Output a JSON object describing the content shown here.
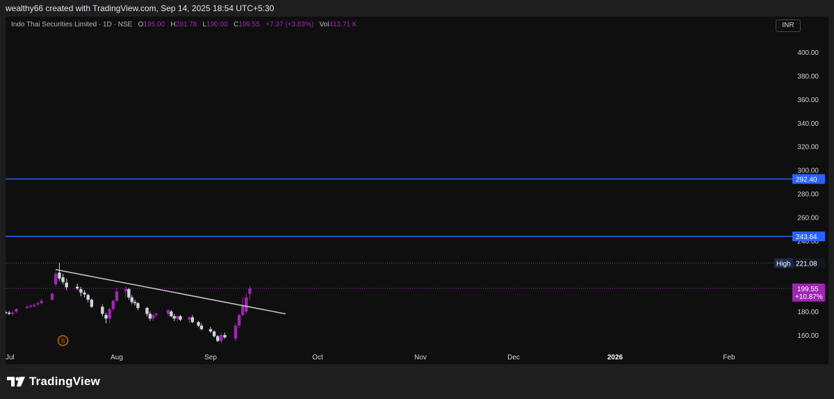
{
  "header": {
    "attribution": "wealthy66 created with TradingView.com, Sep 14, 2025 18:54 UTC+5:30"
  },
  "legend": {
    "symbol": "Indo Thai Securities Limited · 1D · NSE",
    "open_label": "O",
    "open": "195.00",
    "high_label": "H",
    "high": "201.78",
    "low_label": "L",
    "low": "190.00",
    "close_label": "C",
    "close": "199.55",
    "change": "+7.37 (+3.83%)",
    "vol_label": "Vol",
    "vol": "413.71 K"
  },
  "currency": "INR",
  "price_axis": {
    "ticks": [
      "400.00",
      "380.00",
      "360.00",
      "340.00",
      "320.00",
      "300.00",
      "280.00",
      "260.00",
      "240.00",
      "220.00",
      "200.00",
      "180.00",
      "160.00"
    ]
  },
  "time_axis": {
    "labels": [
      "Jul",
      "Aug",
      "Sep",
      "Oct",
      "Nov",
      "Dec",
      "2026",
      "Feb"
    ]
  },
  "levels": {
    "resistance_1": "292.40",
    "resistance_2": "243.64",
    "high_label": "High",
    "high_value": "221.08",
    "last_price": "199.55",
    "last_change": "+10.87%"
  },
  "colors": {
    "bull": "#9c27b0",
    "bear": "#d1d4dc",
    "level_line": "#2962ff",
    "trendline": "#c8c8c8"
  },
  "event_marker": "S",
  "candles": [
    {
      "date": "Jul 01",
      "o": 179.5,
      "h": 181.0,
      "l": 177.5,
      "c": 178.5
    },
    {
      "date": "Jul 02",
      "o": 179.0,
      "h": 180.5,
      "l": 177.0,
      "c": 178.0
    },
    {
      "date": "Jul 03",
      "o": 178.0,
      "h": 180.0,
      "l": 176.5,
      "c": 179.0
    },
    {
      "date": "Jul 04",
      "o": 180.0,
      "h": 183.0,
      "l": 179.0,
      "c": 182.0
    },
    {
      "date": "Jul 07",
      "o": 183.0,
      "h": 185.5,
      "l": 182.0,
      "c": 184.0
    },
    {
      "date": "Jul 08",
      "o": 184.0,
      "h": 186.0,
      "l": 183.0,
      "c": 185.0
    },
    {
      "date": "Jul 09",
      "o": 184.5,
      "h": 187.0,
      "l": 183.5,
      "c": 185.5
    },
    {
      "date": "Jul 10",
      "o": 186.0,
      "h": 188.5,
      "l": 185.0,
      "c": 187.0
    },
    {
      "date": "Jul 11",
      "o": 187.0,
      "h": 190.5,
      "l": 186.0,
      "c": 189.0
    },
    {
      "date": "Jul 14",
      "o": 190.0,
      "h": 196.0,
      "l": 189.0,
      "c": 195.0
    },
    {
      "date": "Jul 15",
      "o": 203.0,
      "h": 214.0,
      "l": 201.0,
      "c": 212.0
    },
    {
      "date": "Jul 16",
      "o": 213.0,
      "h": 221.08,
      "l": 206.0,
      "c": 208.0
    },
    {
      "date": "Jul 17",
      "o": 209.0,
      "h": 212.0,
      "l": 203.0,
      "c": 205.0
    },
    {
      "date": "Jul 18",
      "o": 204.5,
      "h": 208.0,
      "l": 198.0,
      "c": 200.5
    },
    {
      "date": "Jul 21",
      "o": 201.0,
      "h": 203.5,
      "l": 198.0,
      "c": 199.5
    },
    {
      "date": "Jul 22",
      "o": 199.0,
      "h": 201.0,
      "l": 193.0,
      "c": 196.0
    },
    {
      "date": "Jul 23",
      "o": 196.0,
      "h": 198.0,
      "l": 192.0,
      "c": 194.5
    },
    {
      "date": "Jul 24",
      "o": 194.0,
      "h": 195.0,
      "l": 188.0,
      "c": 190.0
    },
    {
      "date": "Jul 25",
      "o": 190.0,
      "h": 191.0,
      "l": 183.0,
      "c": 184.0
    },
    {
      "date": "Jul 28",
      "o": 184.0,
      "h": 186.0,
      "l": 176.0,
      "c": 178.0
    },
    {
      "date": "Jul 29",
      "o": 177.0,
      "h": 179.0,
      "l": 170.0,
      "c": 174.0
    },
    {
      "date": "Jul 30",
      "o": 174.0,
      "h": 183.0,
      "l": 170.0,
      "c": 182.0
    },
    {
      "date": "Jul 31",
      "o": 182.0,
      "h": 190.0,
      "l": 180.0,
      "c": 189.0
    },
    {
      "date": "Aug 01",
      "o": 189.0,
      "h": 200.0,
      "l": 188.0,
      "c": 197.0
    },
    {
      "date": "Aug 04",
      "o": 197.0,
      "h": 201.0,
      "l": 192.0,
      "c": 199.0
    },
    {
      "date": "Aug 05",
      "o": 199.0,
      "h": 200.0,
      "l": 190.0,
      "c": 192.0
    },
    {
      "date": "Aug 06",
      "o": 192.0,
      "h": 194.0,
      "l": 186.0,
      "c": 188.0
    },
    {
      "date": "Aug 07",
      "o": 188.0,
      "h": 190.0,
      "l": 185.0,
      "c": 187.0
    },
    {
      "date": "Aug 08",
      "o": 187.0,
      "h": 188.0,
      "l": 181.0,
      "c": 183.0
    },
    {
      "date": "Aug 11",
      "o": 183.0,
      "h": 184.0,
      "l": 176.0,
      "c": 178.0
    },
    {
      "date": "Aug 12",
      "o": 178.0,
      "h": 180.0,
      "l": 172.0,
      "c": 174.0
    },
    {
      "date": "Aug 13",
      "o": 174.0,
      "h": 178.0,
      "l": 172.0,
      "c": 177.0
    },
    {
      "date": "Aug 14",
      "o": 177.0,
      "h": 179.0,
      "l": 175.0,
      "c": 178.0
    },
    {
      "date": "Aug 18",
      "o": 178.0,
      "h": 182.0,
      "l": 176.0,
      "c": 181.0
    },
    {
      "date": "Aug 19",
      "o": 180.0,
      "h": 181.0,
      "l": 175.0,
      "c": 176.0
    },
    {
      "date": "Aug 20",
      "o": 176.0,
      "h": 178.0,
      "l": 172.0,
      "c": 174.0
    },
    {
      "date": "Aug 21",
      "o": 174.0,
      "h": 177.0,
      "l": 172.0,
      "c": 176.0
    },
    {
      "date": "Aug 22",
      "o": 176.0,
      "h": 177.0,
      "l": 172.0,
      "c": 173.0
    },
    {
      "date": "Aug 25",
      "o": 173.0,
      "h": 176.0,
      "l": 170.0,
      "c": 175.0
    },
    {
      "date": "Aug 26",
      "o": 175.0,
      "h": 177.0,
      "l": 170.0,
      "c": 171.0
    },
    {
      "date": "Aug 28",
      "o": 171.0,
      "h": 172.0,
      "l": 167.0,
      "c": 168.0
    },
    {
      "date": "Aug 29",
      "o": 168.0,
      "h": 170.0,
      "l": 164.0,
      "c": 165.0
    },
    {
      "date": "Sep 01",
      "o": 165.0,
      "h": 167.0,
      "l": 162.0,
      "c": 163.0
    },
    {
      "date": "Sep 02",
      "o": 163.0,
      "h": 164.0,
      "l": 158.0,
      "c": 159.0
    },
    {
      "date": "Sep 03",
      "o": 159.0,
      "h": 160.0,
      "l": 154.0,
      "c": 155.0
    },
    {
      "date": "Sep 04",
      "o": 155.0,
      "h": 162.0,
      "l": 153.0,
      "c": 160.0
    },
    {
      "date": "Sep 05",
      "o": 160.0,
      "h": 162.0,
      "l": 157.0,
      "c": 158.0
    },
    {
      "date": "Sep 08",
      "o": 157.0,
      "h": 170.0,
      "l": 155.0,
      "c": 168.0
    },
    {
      "date": "Sep 09",
      "o": 168.0,
      "h": 178.0,
      "l": 166.0,
      "c": 177.0
    },
    {
      "date": "Sep 10",
      "o": 177.0,
      "h": 192.0,
      "l": 176.0,
      "c": 185.0
    },
    {
      "date": "Sep 11",
      "o": 180.0,
      "h": 195.0,
      "l": 178.0,
      "c": 192.0
    },
    {
      "date": "Sep 12",
      "o": 195.0,
      "h": 201.78,
      "l": 190.0,
      "c": 199.55
    }
  ],
  "trendline": {
    "start": {
      "date": "Jul 15",
      "price": 215.5
    },
    "end": {
      "date": "Sep 22",
      "price": 178.0
    }
  }
}
